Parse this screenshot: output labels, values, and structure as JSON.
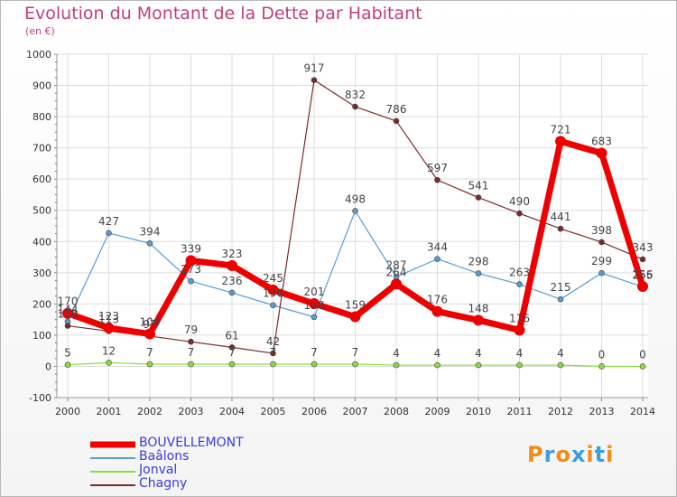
{
  "header": {
    "title": "Evolution du Montant de la Dette par Habitant",
    "unit": "(en €)"
  },
  "brand": {
    "logo": "Proxiti",
    "colors": [
      "#f28c1a",
      "#3a9ee0",
      "#f28c1a",
      "#3a9ee0",
      "#f28c1a",
      "#3a9ee0",
      "#f28c1a"
    ]
  },
  "chart_data": {
    "type": "line",
    "x": [
      "2000",
      "2001",
      "2002",
      "2003",
      "2004",
      "2005",
      "2006",
      "2007",
      "2008",
      "2009",
      "2010",
      "2011",
      "2012",
      "2013",
      "2014"
    ],
    "ylim": [
      -100,
      1000
    ],
    "yticks": [
      -100,
      0,
      100,
      200,
      300,
      400,
      500,
      600,
      700,
      800,
      900,
      1000
    ],
    "grid": true,
    "legend_position": "bottom-left",
    "series": [
      {
        "name": "BOUVELLEMONT",
        "color": "#ee0000",
        "values": [
          170,
          123,
          104,
          339,
          323,
          245,
          201,
          159,
          264,
          176,
          148,
          116,
          721,
          683,
          256
        ]
      },
      {
        "name": "Baâlons",
        "color": "#5b9bd0",
        "values": [
          144,
          427,
          394,
          273,
          236,
          196,
          158,
          498,
          287,
          344,
          298,
          263,
          215,
          299,
          255
        ]
      },
      {
        "name": "Jonval",
        "color": "#88dd44",
        "values": [
          5,
          12,
          7,
          7,
          7,
          7,
          7,
          7,
          4,
          4,
          4,
          4,
          4,
          0,
          0
        ]
      },
      {
        "name": "Chagny",
        "color": "#7a2a2a",
        "values": [
          130,
          113,
          97,
          79,
          61,
          42,
          917,
          832,
          786,
          597,
          541,
          490,
          441,
          398,
          343
        ]
      }
    ]
  }
}
